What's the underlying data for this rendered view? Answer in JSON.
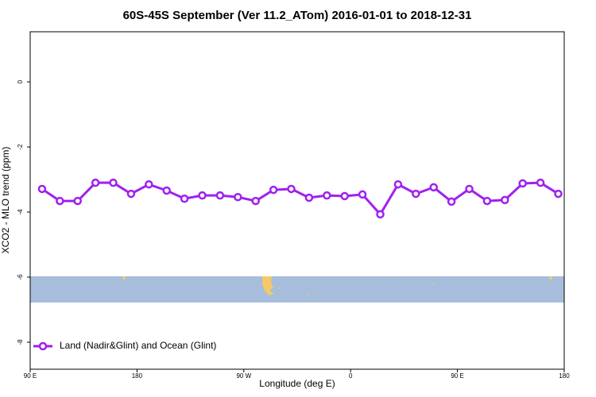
{
  "chart_data": {
    "type": "line",
    "title": "60S-45S September (Ver 11.2_ATom)   2016-01-01 to 2018-12-31",
    "x_label": "Longitude (deg E)",
    "y_label": "XCO2 - MLO trend (ppm)",
    "x": [
      100,
      115,
      130,
      145,
      160,
      175,
      190,
      205,
      220,
      235,
      250,
      265,
      280,
      295,
      310,
      325,
      340,
      355,
      370,
      385,
      400,
      415,
      430,
      445,
      460,
      475,
      490,
      505,
      520,
      535
    ],
    "series": [
      {
        "name": "Land (Nadir&Glint) and Ocean (Glint)",
        "color": "#a020f0",
        "values": [
          -3.29,
          -3.66,
          -3.66,
          -3.1,
          -3.1,
          -3.44,
          -3.15,
          -3.34,
          -3.59,
          -3.49,
          -3.49,
          -3.54,
          -3.66,
          -3.32,
          -3.29,
          -3.56,
          -3.49,
          -3.51,
          -3.46,
          -4.07,
          -3.15,
          -3.44,
          -3.24,
          -3.68,
          -3.29,
          -3.66,
          -3.63,
          -3.12,
          -3.1,
          -3.44
        ]
      }
    ],
    "xlim": [
      90,
      540
    ],
    "xticks": [
      {
        "value": 90,
        "label": "90 E"
      },
      180,
      {
        "value": 270,
        "label": "90 W"
      },
      {
        "value": 360,
        "label": "0"
      },
      {
        "value": 450,
        "label": "90 E"
      },
      {
        "value": 540,
        "label": "180"
      }
    ],
    "ylim": [
      -8.83,
      1.54
    ],
    "yticks": [
      0,
      -2,
      -4,
      -6,
      -8
    ],
    "legend": "bottom-left"
  }
}
